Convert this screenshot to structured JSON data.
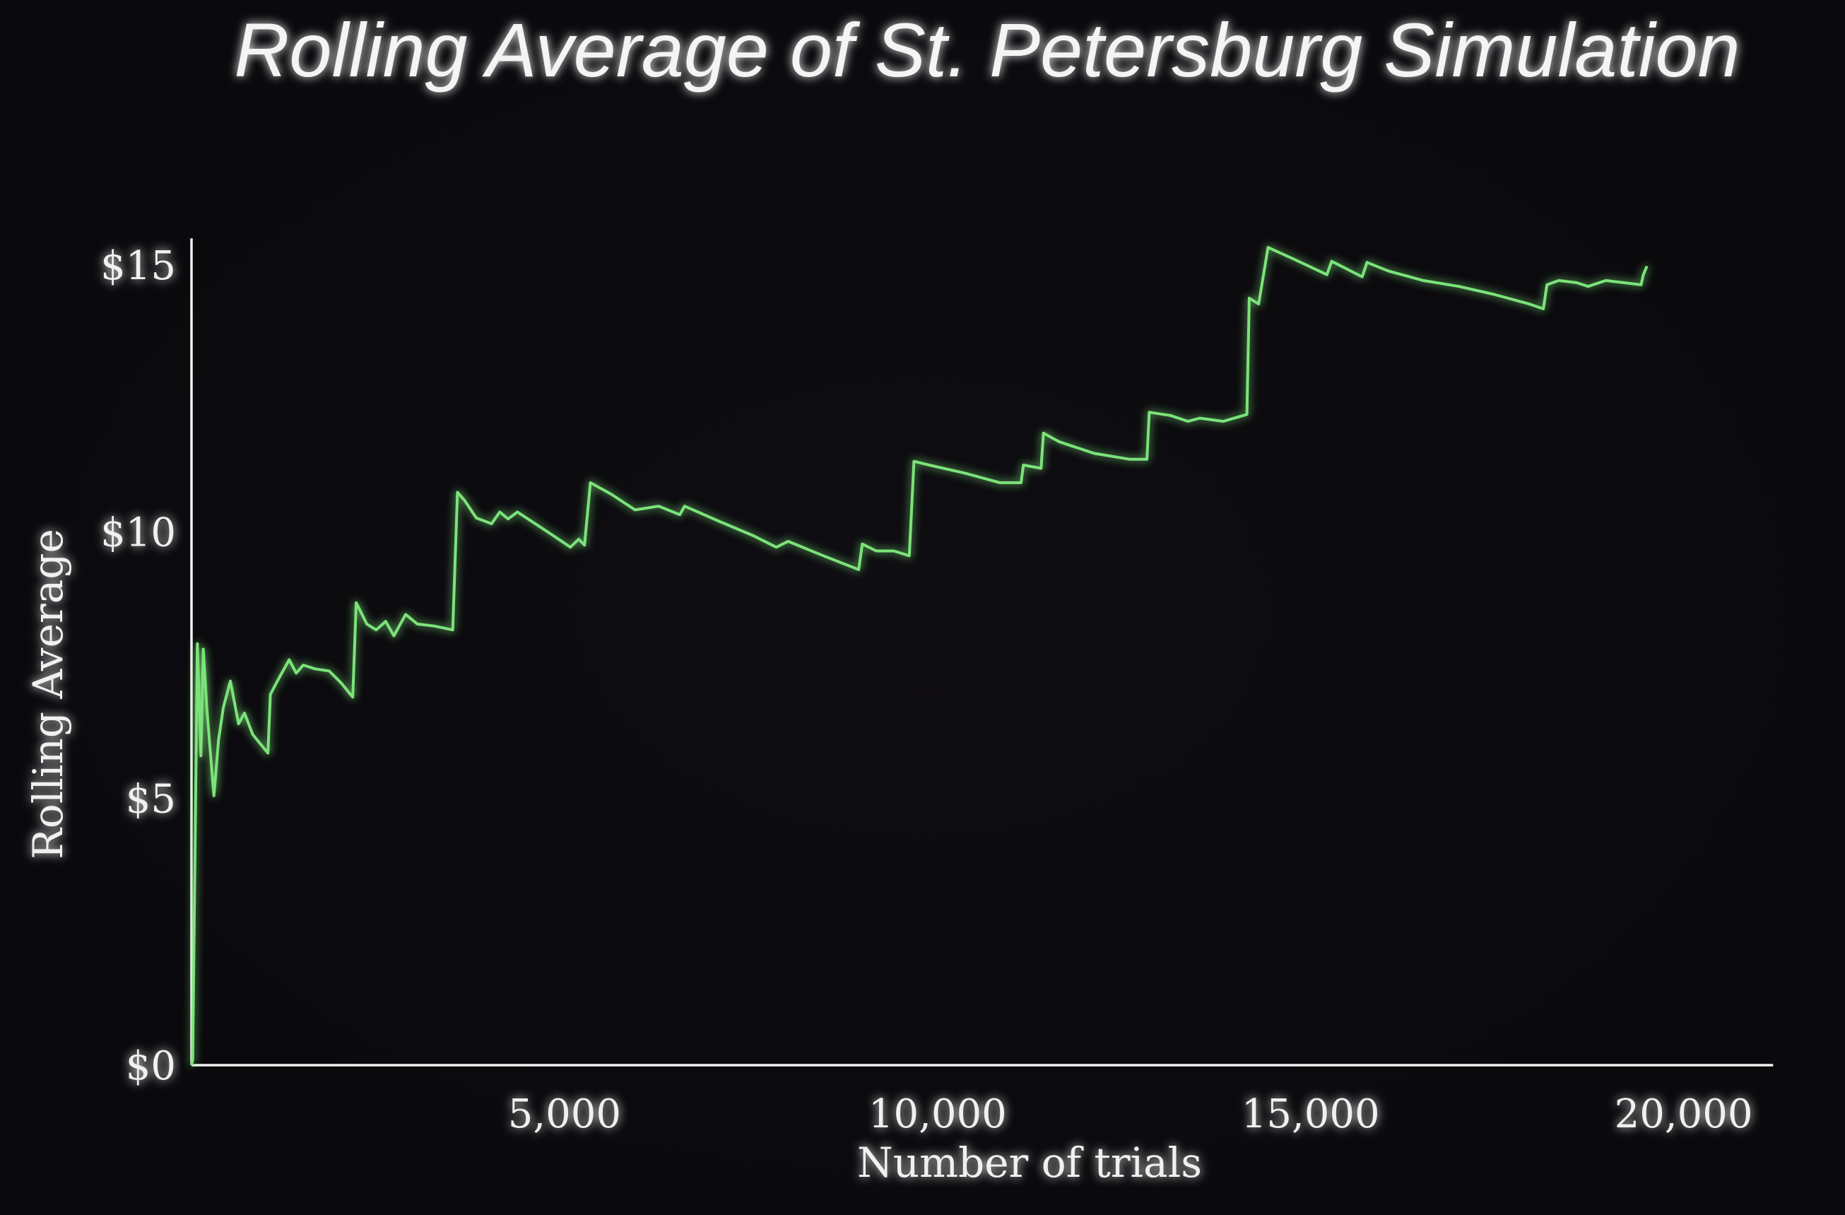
{
  "chart_data": {
    "type": "line",
    "title": "Rolling Average of St. Petersburg Simulation",
    "xlabel": "Number of trials",
    "ylabel": "Rolling Average",
    "xlim": [
      0,
      21200
    ],
    "ylim": [
      0,
      15.5
    ],
    "xticks": [
      5000,
      10000,
      15000,
      20000
    ],
    "xtick_labels": [
      "5,000",
      "10,000",
      "15,000",
      "20,000"
    ],
    "yticks": [
      0,
      5,
      10,
      15
    ],
    "ytick_labels": [
      "$0",
      "$5",
      "$10",
      "$15"
    ],
    "grid": false,
    "colors": {
      "line": "#7be37a",
      "axis": "#f2f2f2",
      "background": "#0a090c"
    },
    "series": [
      {
        "name": "Rolling Average",
        "x": [
          0,
          16,
          79,
          126,
          158,
          205,
          300,
          363,
          426,
          521,
          631,
          710,
          820,
          1025,
          1057,
          1151,
          1309,
          1404,
          1498,
          1656,
          1845,
          2003,
          2161,
          2208,
          2350,
          2476,
          2603,
          2713,
          2871,
          3028,
          3265,
          3502,
          3565,
          3659,
          3817,
          4022,
          4132,
          4243,
          4369,
          4685,
          4921,
          5079,
          5189,
          5268,
          5347,
          5631,
          5946,
          6262,
          6546,
          6609,
          7050,
          7524,
          7839,
          7997,
          8470,
          8943,
          8991,
          9180,
          9416,
          9621,
          9684,
          9890,
          10363,
          10836,
          11120,
          11151,
          11388,
          11420,
          11625,
          12098,
          12571,
          12806,
          12838,
          13122,
          13358,
          13516,
          13831,
          14147,
          14178,
          14304,
          14430,
          14777,
          15219,
          15282,
          15692,
          15756,
          16040,
          16513,
          16986,
          17459,
          17931,
          18120,
          18168,
          18326,
          18562,
          18720,
          18957,
          19430,
          19461,
          19508
        ],
        "y": [
          0,
          0.1,
          7.9,
          5.8,
          7.8,
          6.7,
          5.05,
          6.1,
          6.7,
          7.2,
          6.4,
          6.6,
          6.2,
          5.85,
          6.95,
          7.2,
          7.6,
          7.35,
          7.5,
          7.43,
          7.39,
          7.17,
          6.9,
          8.67,
          8.27,
          8.16,
          8.32,
          8.05,
          8.45,
          8.27,
          8.23,
          8.16,
          10.74,
          10.59,
          10.26,
          10.15,
          10.37,
          10.24,
          10.37,
          10.08,
          9.86,
          9.71,
          9.86,
          9.75,
          10.92,
          10.7,
          10.41,
          10.48,
          10.32,
          10.48,
          10.21,
          9.93,
          9.71,
          9.82,
          9.55,
          9.29,
          9.77,
          9.64,
          9.64,
          9.55,
          11.32,
          11.25,
          11.1,
          10.92,
          10.92,
          11.25,
          11.19,
          11.85,
          11.69,
          11.47,
          11.36,
          11.36,
          12.24,
          12.18,
          12.07,
          12.13,
          12.07,
          12.2,
          14.38,
          14.27,
          15.33,
          15.11,
          14.82,
          15.07,
          14.78,
          15.05,
          14.89,
          14.71,
          14.6,
          14.45,
          14.27,
          14.18,
          14.63,
          14.71,
          14.67,
          14.6,
          14.71,
          14.63,
          14.82,
          14.98
        ]
      }
    ]
  }
}
